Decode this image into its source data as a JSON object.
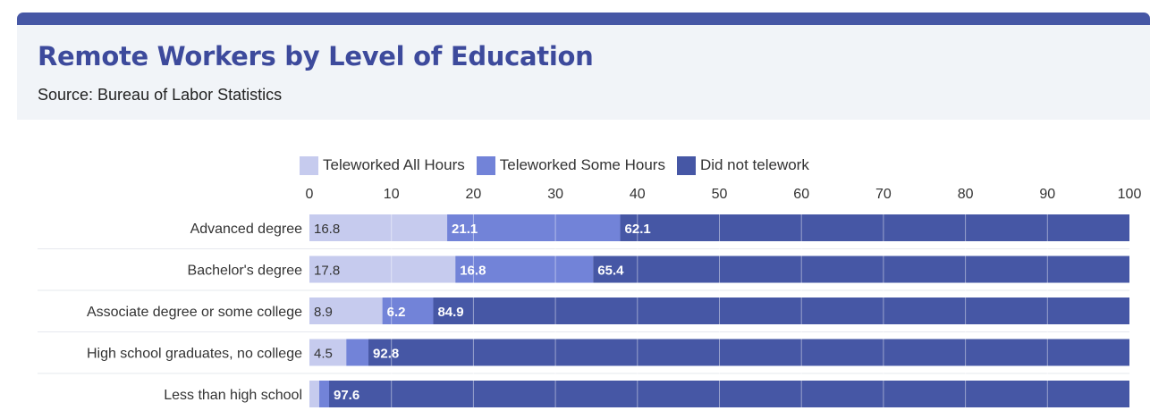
{
  "header": {
    "title": "Remote Workers by Level of Education",
    "subtitle": "Source: Bureau of Labor Statistics"
  },
  "colors": {
    "accent": "#4657a5",
    "title": "#3d4a9c",
    "teleworked_all": "#c6cbee",
    "teleworked_some": "#7283d8",
    "did_not": "#4657a5",
    "header_bg": "#f1f4f8"
  },
  "chart_data": {
    "type": "bar",
    "orientation": "horizontal",
    "stacked": true,
    "categories": [
      "Advanced degree",
      "Bachelor's degree",
      "Associate degree or some college",
      "High school graduates, no college",
      "Less than high school"
    ],
    "series": [
      {
        "name": "Teleworked All Hours",
        "values": [
          16.8,
          17.8,
          8.9,
          4.5,
          1.2
        ]
      },
      {
        "name": "Teleworked Some Hours",
        "values": [
          21.1,
          16.8,
          6.2,
          2.7,
          1.2
        ]
      },
      {
        "name": "Did not telework",
        "values": [
          62.1,
          65.4,
          84.9,
          92.8,
          97.6
        ]
      }
    ],
    "labels": [
      [
        "16.8",
        "21.1",
        "62.1"
      ],
      [
        "17.8",
        "16.8",
        "65.4"
      ],
      [
        "8.9",
        "6.2",
        "84.9"
      ],
      [
        "4.5",
        "",
        "92.8"
      ],
      [
        "",
        "",
        "97.6"
      ]
    ],
    "xlim": [
      0,
      100
    ],
    "xticks": [
      "0",
      "10",
      "20",
      "30",
      "40",
      "50",
      "60",
      "70",
      "80",
      "90",
      "100"
    ],
    "legend_position": "top",
    "grid": true
  }
}
